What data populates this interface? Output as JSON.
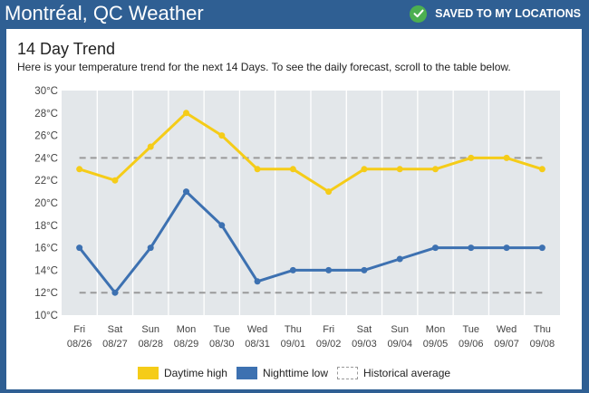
{
  "header": {
    "title": "Montréal, QC Weather",
    "saved_label": "SAVED TO MY LOCATIONS"
  },
  "card": {
    "title": "14 Day Trend",
    "subtitle": "Here is your temperature trend for the next 14 Days. To see the daily forecast, scroll to the table below."
  },
  "colors": {
    "header_bg": "#2f5f93",
    "daytime_high": "#f5cc18",
    "nighttime_low": "#3d71b1",
    "historical": "#9a9a9a",
    "plot_bg": "#e3e7ea",
    "check": "#4caf50"
  },
  "chart_data": {
    "type": "line",
    "title": "14 Day Trend",
    "xlabel": "",
    "ylabel": "",
    "ylim": [
      10,
      30
    ],
    "ytick_step": 2,
    "y_unit": "°C",
    "grid": true,
    "days": [
      "Fri",
      "Sat",
      "Sun",
      "Mon",
      "Tue",
      "Wed",
      "Thu",
      "Fri",
      "Sat",
      "Sun",
      "Mon",
      "Tue",
      "Wed",
      "Thu"
    ],
    "dates": [
      "08/26",
      "08/27",
      "08/28",
      "08/29",
      "08/30",
      "08/31",
      "09/01",
      "09/02",
      "09/03",
      "09/04",
      "09/05",
      "09/06",
      "09/07",
      "09/08"
    ],
    "series": [
      {
        "name": "Daytime high",
        "values": [
          23,
          22,
          25,
          28,
          26,
          23,
          23,
          21,
          23,
          23,
          23,
          24,
          24,
          23
        ]
      },
      {
        "name": "Nighttime low",
        "values": [
          16,
          12,
          16,
          21,
          18,
          13,
          14,
          14,
          14,
          15,
          16,
          16,
          16,
          16
        ]
      }
    ],
    "historical_average": {
      "name": "Historical average",
      "high": 24,
      "low": 12
    },
    "legend_position": "bottom"
  }
}
